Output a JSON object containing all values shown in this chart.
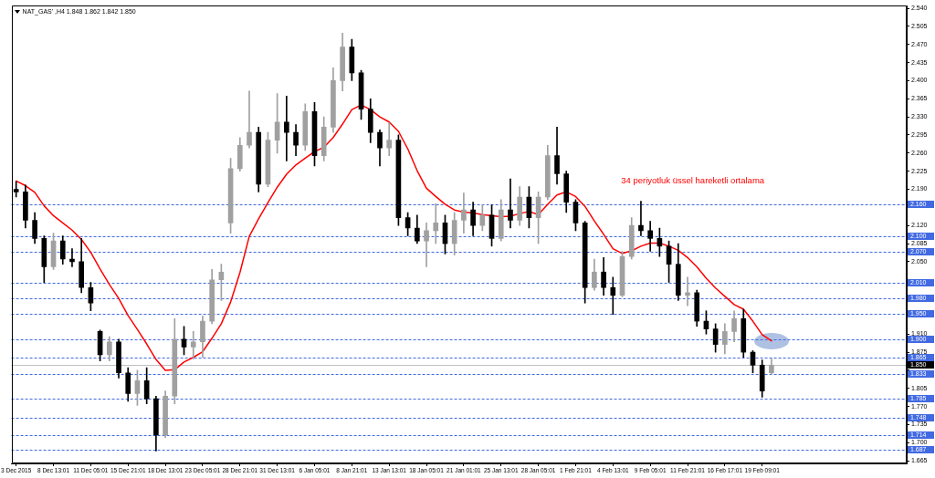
{
  "chart_data": {
    "type": "candlestick",
    "title": "NAT_GAS' ,H4 1.848 1.862 1.842 1.850",
    "categories": [
      "3 Dec 2015",
      null,
      null,
      null,
      "8 Dec 13:01",
      null,
      null,
      null,
      "11 Dec 05:01",
      null,
      null,
      null,
      "15 Dec 21:01",
      null,
      null,
      null,
      "18 Dec 13:01",
      null,
      null,
      null,
      "23 Dec 05:01",
      null,
      null,
      null,
      "28 Dec 21:01",
      null,
      null,
      null,
      "31 Dec 13:01",
      null,
      null,
      null,
      "6 Jan 05:01",
      null,
      null,
      null,
      "8 Jan 21:01",
      null,
      null,
      null,
      "13 Jan 13:01",
      null,
      null,
      null,
      "18 Jan 05:01",
      null,
      null,
      null,
      "21 Jan 01:01",
      null,
      null,
      null,
      "25 Jan 13:01",
      null,
      null,
      null,
      "28 Jan 05:01",
      null,
      null,
      null,
      "1 Feb 21:01",
      null,
      null,
      null,
      "4 Feb 13:01",
      null,
      null,
      null,
      "9 Feb 05:01",
      null,
      null,
      null,
      "11 Feb 21:01",
      null,
      null,
      null,
      "16 Feb 17:01",
      null,
      null,
      null,
      "19 Feb 09:01",
      null,
      null,
      null,
      null,
      null,
      null,
      null,
      null,
      null,
      null,
      null,
      null,
      null,
      null,
      null
    ],
    "ohlc": [
      [
        2.19,
        2.205,
        2.175,
        2.185
      ],
      [
        2.185,
        2.198,
        2.115,
        2.13
      ],
      [
        2.13,
        2.145,
        2.085,
        2.095
      ],
      [
        2.095,
        2.1,
        2.01,
        2.04
      ],
      [
        2.04,
        2.105,
        2.035,
        2.09
      ],
      [
        2.09,
        2.1,
        2.045,
        2.055
      ],
      [
        2.055,
        2.075,
        2.04,
        2.05
      ],
      [
        2.05,
        2.095,
        1.99,
        2.0
      ],
      [
        2.0,
        2.01,
        1.955,
        1.97
      ],
      [
        1.915,
        1.918,
        1.858,
        1.87
      ],
      [
        1.87,
        1.905,
        1.858,
        1.895
      ],
      [
        1.895,
        1.9,
        1.825,
        1.835
      ],
      [
        1.835,
        1.845,
        1.78,
        1.795
      ],
      [
        1.795,
        1.84,
        1.772,
        1.82
      ],
      [
        1.82,
        1.845,
        1.775,
        1.785
      ],
      [
        1.785,
        1.79,
        1.684,
        1.715
      ],
      [
        1.715,
        1.8,
        1.71,
        1.79
      ],
      [
        1.79,
        1.94,
        1.775,
        1.9
      ],
      [
        1.9,
        1.925,
        1.87,
        1.885
      ],
      [
        1.885,
        1.915,
        1.862,
        1.895
      ],
      [
        1.895,
        1.945,
        1.865,
        1.935
      ],
      [
        1.935,
        2.035,
        1.93,
        2.015
      ],
      [
        2.015,
        2.045,
        1.975,
        2.03
      ],
      [
        2.125,
        2.25,
        2.105,
        2.23
      ],
      [
        2.23,
        2.29,
        2.225,
        2.275
      ],
      [
        2.275,
        2.38,
        2.27,
        2.3
      ],
      [
        2.3,
        2.31,
        2.185,
        2.2
      ],
      [
        2.2,
        2.3,
        2.195,
        2.285
      ],
      [
        2.285,
        2.375,
        2.26,
        2.32
      ],
      [
        2.32,
        2.37,
        2.245,
        2.3
      ],
      [
        2.3,
        2.315,
        2.255,
        2.275
      ],
      [
        2.275,
        2.355,
        2.265,
        2.34
      ],
      [
        2.34,
        2.358,
        2.235,
        2.255
      ],
      [
        2.255,
        2.33,
        2.245,
        2.31
      ],
      [
        2.31,
        2.425,
        2.3,
        2.4
      ],
      [
        2.4,
        2.492,
        2.38,
        2.465
      ],
      [
        2.465,
        2.48,
        2.4,
        2.415
      ],
      [
        2.415,
        2.42,
        2.325,
        2.345
      ],
      [
        2.345,
        2.365,
        2.28,
        2.3
      ],
      [
        2.3,
        2.305,
        2.235,
        2.27
      ],
      [
        2.27,
        2.318,
        2.255,
        2.285
      ],
      [
        2.285,
        2.295,
        2.12,
        2.135
      ],
      [
        2.135,
        2.145,
        2.1,
        2.115
      ],
      [
        2.115,
        2.14,
        2.085,
        2.09
      ],
      [
        2.09,
        2.125,
        2.04,
        2.11
      ],
      [
        2.11,
        2.162,
        2.085,
        2.125
      ],
      [
        2.125,
        2.14,
        2.065,
        2.085
      ],
      [
        2.085,
        2.145,
        2.063,
        2.13
      ],
      [
        2.13,
        2.183,
        2.105,
        2.15
      ],
      [
        2.15,
        2.165,
        2.1,
        2.12
      ],
      [
        2.12,
        2.16,
        2.11,
        2.14
      ],
      [
        2.14,
        2.16,
        2.08,
        2.095
      ],
      [
        2.095,
        2.17,
        2.09,
        2.15
      ],
      [
        2.15,
        2.21,
        2.115,
        2.13
      ],
      [
        2.13,
        2.195,
        2.12,
        2.175
      ],
      [
        2.175,
        2.195,
        2.115,
        2.135
      ],
      [
        2.135,
        2.185,
        2.085,
        2.175
      ],
      [
        2.175,
        2.275,
        2.17,
        2.255
      ],
      [
        2.255,
        2.31,
        2.2,
        2.22
      ],
      [
        2.22,
        2.225,
        2.145,
        2.165
      ],
      [
        2.165,
        2.17,
        2.11,
        2.125
      ],
      [
        2.125,
        2.128,
        1.97,
        2.0
      ],
      [
        2.0,
        2.055,
        1.995,
        2.03
      ],
      [
        2.03,
        2.058,
        1.985,
        2.0
      ],
      [
        2.0,
        2.02,
        1.948,
        1.985
      ],
      [
        1.985,
        2.07,
        1.982,
        2.06
      ],
      [
        2.06,
        2.135,
        2.055,
        2.12
      ],
      [
        2.12,
        2.167,
        2.1,
        2.11
      ],
      [
        2.11,
        2.128,
        2.07,
        2.095
      ],
      [
        2.095,
        2.115,
        2.06,
        2.08
      ],
      [
        2.08,
        2.09,
        2.01,
        2.045
      ],
      [
        2.045,
        2.085,
        1.975,
        1.985
      ],
      [
        1.985,
        2.02,
        1.965,
        1.99
      ],
      [
        1.99,
        1.995,
        1.925,
        1.935
      ],
      [
        1.935,
        1.955,
        1.91,
        1.92
      ],
      [
        1.92,
        1.93,
        1.875,
        1.89
      ],
      [
        1.89,
        1.93,
        1.872,
        1.915
      ],
      [
        1.915,
        1.955,
        1.895,
        1.94
      ],
      [
        1.94,
        1.958,
        1.865,
        1.875
      ],
      [
        1.875,
        1.878,
        1.835,
        1.85
      ],
      [
        1.85,
        1.86,
        1.788,
        1.8
      ],
      [
        1.835,
        1.862,
        1.832,
        1.85
      ],
      null,
      null,
      null,
      null,
      null,
      null,
      null,
      null,
      null,
      null,
      null,
      null,
      null,
      null
    ],
    "colors": [
      "#000000",
      "#000000",
      "#000000",
      "#000000",
      "#a0a0a0",
      "#000000",
      "#000000",
      "#000000",
      "#000000",
      "#000000",
      "#a0a0a0",
      "#000000",
      "#000000",
      "#a0a0a0",
      "#000000",
      "#000000",
      "#a0a0a0",
      "#a0a0a0",
      "#000000",
      "#a0a0a0",
      "#a0a0a0",
      "#a0a0a0",
      "#a0a0a0",
      "#a0a0a0",
      "#a0a0a0",
      "#a0a0a0",
      "#000000",
      "#a0a0a0",
      "#a0a0a0",
      "#000000",
      "#000000",
      "#a0a0a0",
      "#000000",
      "#a0a0a0",
      "#a0a0a0",
      "#a0a0a0",
      "#000000",
      "#000000",
      "#000000",
      "#000000",
      "#a0a0a0",
      "#000000",
      "#000000",
      "#000000",
      "#a0a0a0",
      "#a0a0a0",
      "#000000",
      "#a0a0a0",
      "#a0a0a0",
      "#000000",
      "#a0a0a0",
      "#000000",
      "#a0a0a0",
      "#000000",
      "#a0a0a0",
      "#000000",
      "#a0a0a0",
      "#a0a0a0",
      "#000000",
      "#000000",
      "#000000",
      "#000000",
      "#a0a0a0",
      "#000000",
      "#000000",
      "#a0a0a0",
      "#a0a0a0",
      "#000000",
      "#000000",
      "#000000",
      "#000000",
      "#000000",
      "#a0a0a0",
      "#000000",
      "#000000",
      "#000000",
      "#a0a0a0",
      "#a0a0a0",
      "#000000",
      "#000000",
      "#000000",
      "#a0a0a0",
      null,
      null,
      null,
      null,
      null,
      null,
      null,
      null,
      null,
      null,
      null,
      null,
      null,
      null
    ],
    "series": [
      {
        "name": "34 periyotluk üssel hareketli ortalama",
        "type": "line",
        "color": "#ff0000",
        "values": [
          2.206,
          2.197,
          2.184,
          2.158,
          2.139,
          2.125,
          2.111,
          2.093,
          2.068,
          2.036,
          2.006,
          1.979,
          1.946,
          1.919,
          1.891,
          1.861,
          1.84,
          1.841,
          1.856,
          1.865,
          1.876,
          1.902,
          1.93,
          1.972,
          2.029,
          2.099,
          2.133,
          2.164,
          2.194,
          2.219,
          2.237,
          2.25,
          2.263,
          2.271,
          2.29,
          2.316,
          2.344,
          2.353,
          2.344,
          2.33,
          2.32,
          2.302,
          2.268,
          2.226,
          2.192,
          2.176,
          2.161,
          2.15,
          2.146,
          2.144,
          2.141,
          2.139,
          2.137,
          2.138,
          2.143,
          2.147,
          2.141,
          2.161,
          2.179,
          2.185,
          2.176,
          2.157,
          2.129,
          2.103,
          2.075,
          2.066,
          2.071,
          2.08,
          2.086,
          2.086,
          2.08,
          2.072,
          2.058,
          2.04,
          2.018,
          1.999,
          1.983,
          1.967,
          1.958,
          1.935,
          1.909,
          1.897,
          null,
          null,
          null,
          null,
          null,
          null,
          null,
          null,
          null,
          null,
          null,
          null,
          null,
          null
        ]
      }
    ],
    "ylim": [
      1.66,
      2.545
    ],
    "yticks": [
      1.665,
      {
        "value": 1.7,
        "label": "1.700"
      },
      1.735,
      {
        "value": 1.77,
        "label": "1.770"
      },
      1.805,
      {
        "value": 1.84,
        "label": null
      },
      1.875,
      {
        "value": 1.91,
        "label": "1.910"
      },
      {
        "value": 1.945,
        "label": null
      },
      {
        "value": 1.98,
        "label": null
      },
      {
        "value": 2.015,
        "label": null
      },
      {
        "value": 2.05,
        "label": "2.050"
      },
      2.085,
      {
        "value": 2.12,
        "label": "2.120"
      },
      {
        "value": 2.155,
        "label": null
      },
      {
        "value": 2.19,
        "label": "2.190"
      },
      2.225,
      {
        "value": 2.26,
        "label": "2.260"
      },
      2.295,
      {
        "value": 2.33,
        "label": "2.330"
      },
      2.365,
      {
        "value": 2.4,
        "label": "2.400"
      },
      2.435,
      {
        "value": 2.47,
        "label": "2.470"
      },
      2.505,
      {
        "value": 2.54,
        "label": "2.540"
      }
    ],
    "ref_lines": [
      {
        "axis": "y",
        "value": 2.16,
        "label": "2.160",
        "color": "#4169e1",
        "line_style": "dashed"
      },
      {
        "axis": "y",
        "value": 2.1,
        "label": "2.100",
        "color": "#4169e1",
        "line_style": "dashed"
      },
      {
        "axis": "y",
        "value": 2.07,
        "label": "2.070",
        "color": "#4169e1",
        "line_style": "dashed"
      },
      {
        "axis": "y",
        "value": 2.01,
        "label": "2.010",
        "color": "#4169e1",
        "line_style": "dashed"
      },
      {
        "axis": "y",
        "value": 1.98,
        "label": "1.980",
        "color": "#4169e1",
        "line_style": "dashed"
      },
      {
        "axis": "y",
        "value": 1.95,
        "label": "1.950",
        "color": "#4169e1",
        "line_style": "dashed"
      },
      {
        "axis": "y",
        "value": 1.9,
        "label": "1.900",
        "color": "#4169e1",
        "line_style": "dashed"
      },
      {
        "axis": "y",
        "value": 1.865,
        "label": "1.865",
        "color": "#4169e1",
        "line_style": "dashed"
      },
      {
        "axis": "y",
        "value": 1.85,
        "label": "1.850",
        "color": "#c0c0c0",
        "line_style": "solid"
      },
      {
        "axis": "y",
        "value": 1.833,
        "label": "1.833",
        "color": "#4169e1",
        "line_style": "dashed"
      },
      {
        "axis": "y",
        "value": 1.785,
        "label": "1.785",
        "color": "#4169e1",
        "line_style": "dashed"
      },
      {
        "axis": "y",
        "value": 1.748,
        "label": "1.748",
        "color": "#4169e1",
        "line_style": "dashed"
      },
      {
        "axis": "y",
        "value": 1.714,
        "label": "1.714",
        "color": "#4169e1",
        "line_style": "dashed"
      },
      {
        "axis": "y",
        "value": 1.687,
        "label": "1.687",
        "color": "#4169e1",
        "line_style": "dashed"
      }
    ]
  }
}
